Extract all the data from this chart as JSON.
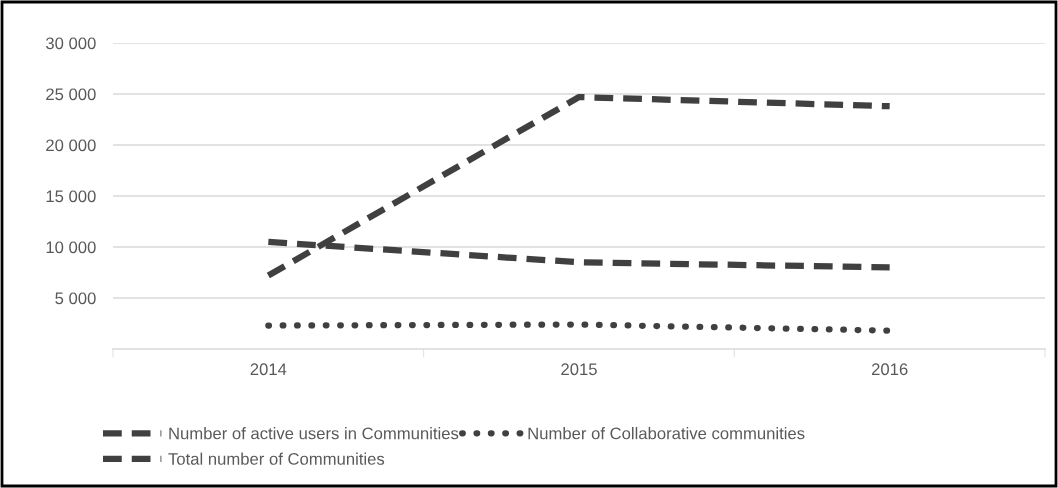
{
  "chart_data": {
    "type": "line",
    "categories": [
      "2014",
      "2015",
      "2016"
    ],
    "series": [
      {
        "name": "Number of active users in Communities",
        "color": "#404040",
        "line_style": "dashed",
        "values": [
          7200,
          24700,
          23800
        ]
      },
      {
        "name": "Number of Collaborative communities",
        "color": "#404040",
        "line_style": "dotted",
        "values": [
          2300,
          2400,
          1800
        ]
      },
      {
        "name": "Total number of Communities",
        "color": "#404040",
        "line_style": "dashed",
        "values": [
          10500,
          8500,
          8000
        ]
      }
    ],
    "ylim": [
      0,
      30000
    ],
    "yticks": [
      {
        "value": 5000,
        "label": "5 000"
      },
      {
        "value": 10000,
        "label": "10 000"
      },
      {
        "value": 15000,
        "label": "15 000"
      },
      {
        "value": 20000,
        "label": "20 000"
      },
      {
        "value": 25000,
        "label": "25 000"
      },
      {
        "value": 30000,
        "label": "30 000"
      }
    ],
    "grid": "y",
    "legend": "bottom",
    "marker": "none"
  }
}
